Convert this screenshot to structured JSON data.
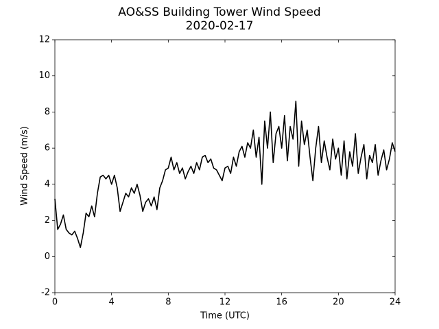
{
  "chart_data": {
    "type": "line",
    "title": "AO&SS Building Tower Wind Speed",
    "subtitle": "2020-02-17",
    "x_label": "Time (UTC)",
    "y_label": "Wind Speed (m/s)",
    "xlim": [
      0,
      24
    ],
    "xticks": [
      0,
      4,
      8,
      12,
      16,
      20,
      24
    ],
    "ylim": [
      -2,
      12
    ],
    "yticks": [
      -2,
      0,
      2,
      4,
      6,
      8,
      10,
      12
    ],
    "x": [
      0,
      0.2,
      0.4,
      0.6,
      0.8,
      1,
      1.2,
      1.4,
      1.6,
      1.8,
      2,
      2.2,
      2.4,
      2.6,
      2.8,
      3,
      3.2,
      3.4,
      3.6,
      3.8,
      4,
      4.2,
      4.4,
      4.6,
      4.8,
      5,
      5.2,
      5.4,
      5.6,
      5.8,
      6,
      6.2,
      6.4,
      6.6,
      6.8,
      7,
      7.2,
      7.4,
      7.6,
      7.8,
      8,
      8.2,
      8.4,
      8.6,
      8.8,
      9,
      9.2,
      9.4,
      9.6,
      9.8,
      10,
      10.2,
      10.4,
      10.6,
      10.8,
      11,
      11.2,
      11.4,
      11.6,
      11.8,
      12,
      12.2,
      12.4,
      12.6,
      12.8,
      13,
      13.2,
      13.4,
      13.6,
      13.8,
      14,
      14.2,
      14.4,
      14.6,
      14.8,
      15,
      15.2,
      15.4,
      15.6,
      15.8,
      16,
      16.2,
      16.4,
      16.6,
      16.8,
      17,
      17.2,
      17.4,
      17.6,
      17.8,
      18,
      18.2,
      18.4,
      18.6,
      18.8,
      19,
      19.2,
      19.4,
      19.6,
      19.8,
      20,
      20.2,
      20.4,
      20.6,
      20.8,
      21,
      21.2,
      21.4,
      21.6,
      21.8,
      22,
      22.2,
      22.4,
      22.6,
      22.8,
      23,
      23.2,
      23.4,
      23.6,
      23.8,
      24
    ],
    "series": [
      {
        "color": "#000000",
        "values": [
          3.2,
          1.5,
          1.8,
          2.3,
          1.5,
          1.3,
          1.2,
          1.4,
          1.0,
          0.5,
          1.3,
          2.4,
          2.2,
          2.8,
          2.2,
          3.5,
          4.4,
          4.5,
          4.3,
          4.5,
          4.0,
          4.5,
          3.8,
          2.5,
          3.0,
          3.5,
          3.3,
          3.8,
          3.5,
          4.0,
          3.4,
          2.5,
          3.0,
          3.2,
          2.8,
          3.3,
          2.6,
          3.8,
          4.2,
          4.8,
          4.9,
          5.5,
          4.8,
          5.2,
          4.6,
          4.9,
          4.3,
          4.7,
          5.0,
          4.6,
          5.2,
          4.8,
          5.5,
          5.6,
          5.2,
          5.4,
          4.9,
          4.8,
          4.5,
          4.2,
          4.9,
          5.0,
          4.6,
          5.5,
          5.0,
          5.8,
          6.1,
          5.5,
          6.3,
          6.0,
          7.0,
          5.5,
          6.6,
          4.0,
          7.5,
          6.0,
          8.0,
          5.2,
          6.8,
          7.2,
          6.0,
          7.8,
          5.3,
          7.2,
          6.5,
          8.6,
          5.0,
          7.5,
          6.2,
          7.0,
          5.5,
          4.2,
          6.0,
          7.2,
          5.2,
          6.4,
          5.5,
          4.8,
          6.5,
          5.4,
          6.0,
          4.5,
          6.4,
          4.3,
          5.8,
          5.0,
          6.8,
          4.6,
          5.5,
          6.2,
          4.3,
          5.6,
          5.2,
          6.2,
          4.5,
          5.3,
          5.9,
          4.8,
          5.4,
          6.3,
          5.8
        ]
      }
    ]
  }
}
